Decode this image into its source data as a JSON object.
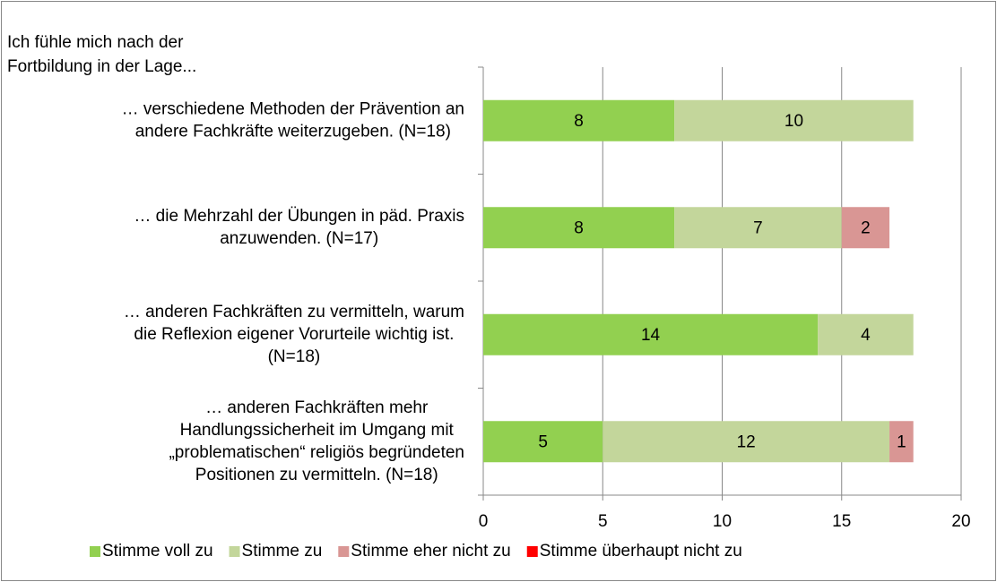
{
  "chart_data": {
    "type": "stacked_bar_horizontal",
    "title": [
      "Ich fühle mich nach der",
      "Fortbildung in der Lage..."
    ],
    "categories": [
      [
        "… verschiedene Methoden der Prävention an",
        "andere Fachkräfte weiterzugeben. (N=18)"
      ],
      [
        "… die Mehrzahl der Übungen in päd. Praxis",
        "anzuwenden. (N=17)"
      ],
      [
        "… anderen Fachkräften zu vermitteln, warum",
        "die Reflexion eigener Vorurteile wichtig ist.",
        "(N=18)"
      ],
      [
        "… anderen Fachkräften mehr",
        "Handlungssicherheit im Umgang mit",
        "„problematischen“ religiös begründeten",
        "Positionen zu vermitteln. (N=18)"
      ]
    ],
    "series": [
      {
        "name": "Stimme voll zu",
        "color": "#92d050",
        "values": [
          8,
          8,
          14,
          5
        ]
      },
      {
        "name": "Stimme zu",
        "color": "#c3d69b",
        "values": [
          10,
          7,
          4,
          12
        ]
      },
      {
        "name": "Stimme eher nicht zu",
        "color": "#d99694",
        "values": [
          null,
          2,
          null,
          1
        ]
      },
      {
        "name": "Stimme überhaupt nicht zu",
        "color": "#ff0000",
        "values": [
          null,
          null,
          null,
          null
        ]
      }
    ],
    "xlim": [
      0,
      20
    ],
    "xticks": [
      0,
      5,
      10,
      15,
      20
    ],
    "grid": true,
    "legend": "bottom"
  }
}
